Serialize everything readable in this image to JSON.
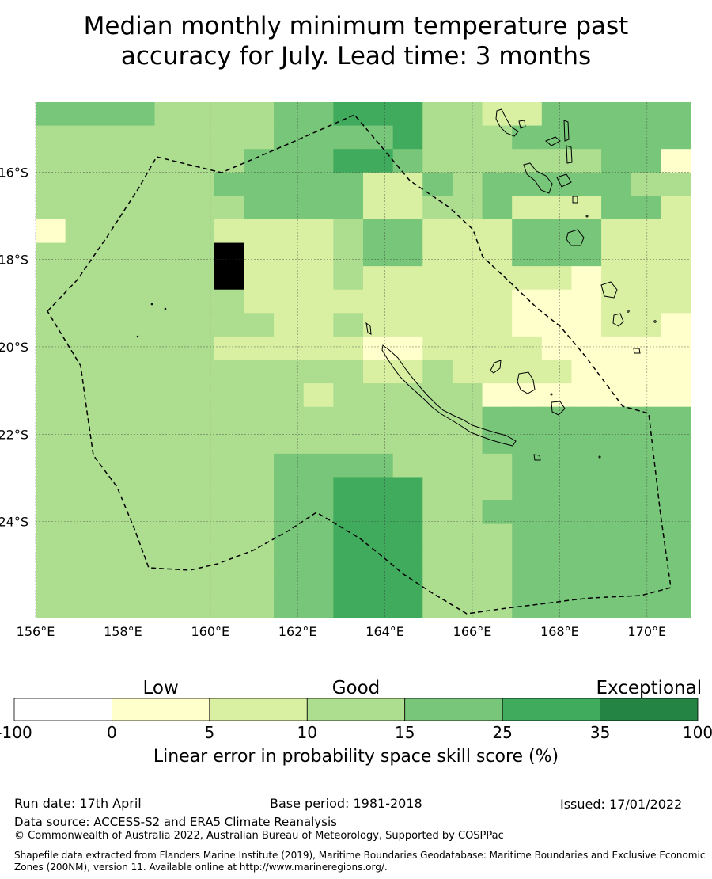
{
  "title_line1": "Median monthly minimum temperature past",
  "title_line2": "accuracy for July. Lead time: 3 months",
  "map": {
    "lon_range": [
      156,
      171
    ],
    "lat_range": [
      -26.2,
      -14.4
    ],
    "x_ticks": [
      "156°E",
      "158°E",
      "160°E",
      "162°E",
      "164°E",
      "166°E",
      "168°E",
      "170°E"
    ],
    "y_ticks": [
      "16°S",
      "18°S",
      "20°S",
      "22°S",
      "24°S"
    ],
    "palette": [
      "#ffffff",
      "#ffffcc",
      "#d9f0a3",
      "#addd8e",
      "#78c679",
      "#41ab5d",
      "#238443"
    ],
    "grid_rows": [
      "4444333344555332244444",
      "3333333344445333444444",
      "3333333444554333333441",
      "3333334444422434444433",
      "3333333444422334222442",
      "1333332222344222444222",
      "3333337222344222444222",
      "3333337222322222221222",
      "3333333222222222111222",
      "3333333322322222111221",
      "3333332222211222211111",
      "3333333333322322221111",
      "3333333332333331111111",
      "3333333333333334444444",
      "3333333333333334444444",
      "3333333344443333444444",
      "3333333344555333444444",
      "3333333344555334444444",
      "3333333344555333444444",
      "3333333344555333444444",
      "3333333344555333444444",
      "3333333344555333444444"
    ]
  },
  "colorbar": {
    "categories": [
      "Low",
      "Good",
      "Exceptional"
    ],
    "ticks": [
      "-100",
      "0",
      "5",
      "10",
      "15",
      "25",
      "35",
      "100"
    ],
    "colors": [
      "#ffffff",
      "#ffffcc",
      "#d9f0a3",
      "#addd8e",
      "#78c679",
      "#41ab5d",
      "#238443"
    ],
    "label": "Linear error in probability space skill score (%)"
  },
  "footer": {
    "run_date": "Run date: 17th April",
    "base_period": "Base period: 1981-2018",
    "issued": "Issued: 17/01/2022",
    "data_source": "Data source: ACCESS-S2 and ERA5 Climate Reanalysis",
    "copyright": "© Commonwealth of Australia 2022, Australian Bureau of Meteorology, Supported by COSPPac",
    "shapefile": "Shapefile data extracted from Flanders Marine Institute (2019), Maritime Boundaries Geodatabase: Maritime Boundaries and Exclusive Economic Zones (200NM), version 11. Available online at http://www.marineregions.org/."
  }
}
